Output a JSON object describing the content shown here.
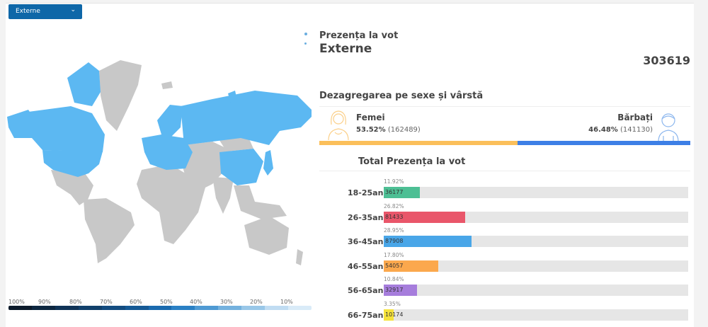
{
  "selector": {
    "value": "Externe",
    "icon": "chevron-down-icon"
  },
  "header": {
    "subtitle": "Prezența la vot",
    "title": "Externe",
    "total": "303619"
  },
  "gender": {
    "heading": "Dezagregarea pe sexe și vârstă",
    "female": {
      "label": "Femei",
      "percent": "53.52%",
      "count": "(162489)",
      "share": 53.52,
      "color": "#fbbf5a"
    },
    "male": {
      "label": "Bărbați",
      "percent": "46.48%",
      "count": "(141130)",
      "share": 46.48,
      "color": "#3d7fe6"
    }
  },
  "age": {
    "heading": "Total Prezența la vot",
    "rows": [
      {
        "label": "18-25ani",
        "percent": "11.92%",
        "value": "36177",
        "share": 11.92,
        "color": "#4dbf94"
      },
      {
        "label": "26-35ani",
        "percent": "26.82%",
        "value": "81433",
        "share": 26.82,
        "color": "#e9566a"
      },
      {
        "label": "36-45ani",
        "percent": "28.95%",
        "value": "87908",
        "share": 28.95,
        "color": "#49a6e8"
      },
      {
        "label": "46-55ani",
        "percent": "17.80%",
        "value": "54057",
        "share": 17.8,
        "color": "#fba84d"
      },
      {
        "label": "56-65ani",
        "percent": "10.84%",
        "value": "32917",
        "share": 10.84,
        "color": "#a67ddc"
      },
      {
        "label": "66-75ani",
        "percent": "3.35%",
        "value": "10174",
        "share": 3.35,
        "color": "#f5e23b"
      }
    ]
  },
  "legend": {
    "labels": [
      "100%",
      "90%",
      "80%",
      "70%",
      "60%",
      "50%",
      "40%",
      "30%",
      "20%",
      "10%"
    ],
    "colors": [
      "#0b1a2a",
      "#0d2740",
      "#0f3356",
      "#11406b",
      "#134c80",
      "#155995",
      "#1a6aae",
      "#2a80c4",
      "#4f9ad3",
      "#74b1de",
      "#99c7e8",
      "#c0dcf2",
      "#d9ebf8"
    ]
  },
  "map": {
    "highlight": "#5cb8f2",
    "base": "#c8c8c8"
  }
}
